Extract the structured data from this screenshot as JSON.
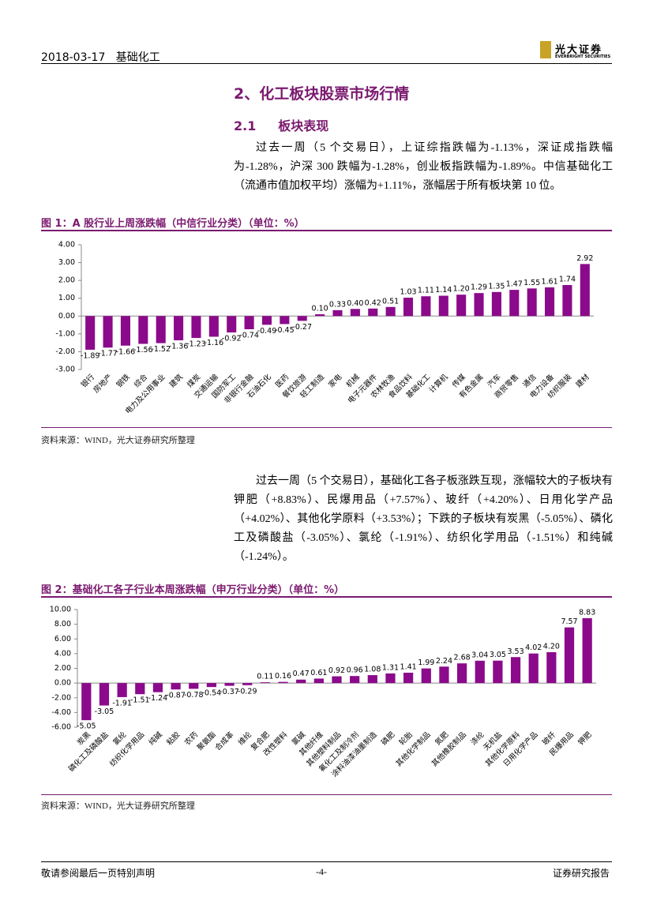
{
  "header": {
    "date": "2018-03-17",
    "sector": "基础化工",
    "logo": "光大证券",
    "logo_en": "EVERBRIGHT SECURITIES"
  },
  "section": {
    "title": "2、化工板块股票市场行情",
    "subsection_number": "2.1",
    "subsection_title": "板块表现"
  },
  "paragraphs": [
    "过去一周（5 个交易日），上证综指跌幅为-1.13%，深证成指跌幅为-1.28%，沪深 300 跌幅为-1.28%，创业板指跌幅为-1.89%。中信基础化工（流通市值加权平均）涨幅为+1.11%，涨幅居于所有板块第 10 位。",
    "过去一周（5 个交易日），基础化工各子板涨跌互现，涨幅较大的子板块有钾肥（+8.83%）、民爆用品（+7.57%）、玻纤（+4.20%）、日用化学产品（+4.02%）、其他化学原料（+3.53%）；下跌的子板块有炭黑（-5.05%）、磷化工及磷酸盐（-3.05%）、氯纶（-1.91%）、纺织化学用品（-1.51%）和纯碱（-1.24%）。"
  ],
  "chart_data": [
    {
      "type": "bar",
      "title": "图 1：A 股行业上周涨跌幅（中信行业分类）（单位：%）",
      "categories": [
        "银行",
        "房地产",
        "钢铁",
        "综合",
        "电力及公用事业",
        "建筑",
        "煤炭",
        "交通运输",
        "国防军工",
        "非银行金融",
        "石油石化",
        "医药",
        "餐饮旅游",
        "轻工制造",
        "家电",
        "机械",
        "电子元器件",
        "农林牧渔",
        "食品饮料",
        "基础化工",
        "计算机",
        "传媒",
        "有色金属",
        "汽车",
        "商贸零售",
        "通信",
        "电力设备",
        "纺织服装",
        "建材"
      ],
      "values": [
        -1.89,
        -1.77,
        -1.66,
        -1.56,
        -1.52,
        -1.36,
        -1.23,
        -1.16,
        -0.92,
        -0.74,
        -0.49,
        -0.45,
        -0.27,
        0.1,
        0.33,
        0.4,
        0.42,
        0.51,
        1.03,
        1.11,
        1.14,
        1.2,
        1.29,
        1.35,
        1.47,
        1.55,
        1.61,
        1.74,
        2.92
      ],
      "value_labels": [
        "-1.89",
        "-1.77",
        "-1.66",
        "-1.56",
        "-1.52",
        "-1.36",
        "-1.23",
        "-1.16",
        "-0.92",
        "-0.74",
        "-0.49",
        "-0.45",
        "-0.27",
        "0.10",
        "0.33",
        "0.40",
        "0.42",
        "0.51",
        "1.03",
        "1.11",
        "1.14",
        "1.20",
        "1.29",
        "1.35",
        "1.47",
        "1.55",
        "1.61",
        "1.74",
        "2.92"
      ],
      "color": "#8b0a8b",
      "ylim": [
        -3,
        4
      ],
      "yticks": [
        {
          "value": -3,
          "label": "-3.00"
        },
        {
          "value": -2,
          "label": "-2.00"
        },
        {
          "value": -1,
          "label": "-1.00"
        },
        {
          "value": 0,
          "label": "0.00"
        },
        {
          "value": 1,
          "label": "1.00"
        },
        {
          "value": 2,
          "label": "2.00"
        },
        {
          "value": 3,
          "label": "3.00"
        },
        {
          "value": 4,
          "label": "4.00"
        }
      ],
      "source": "资料来源：WIND，光大证券研究所整理"
    },
    {
      "type": "bar",
      "title": "图 2：基础化工各子行业本周涨跌幅（申万行业分类）（单位：%）",
      "categories": [
        "炭黑",
        "磷化工及磷酸盐",
        "氯纶",
        "纺织化学用品",
        "纯碱",
        "粘胶",
        "农药",
        "聚氨酯",
        "合成革",
        "维纶",
        "复合肥",
        "改性塑料",
        "氯碱",
        "其他纤维",
        "其他塑料制品",
        "氟化工及制冷剂",
        "涂料油漆油墨制造",
        "磷肥",
        "轮胎",
        "其他化学制品",
        "氮肥",
        "其他橡胶制品",
        "涤纶",
        "无机盐",
        "其他化学原料",
        "日用化学产品",
        "玻纤",
        "民爆用品",
        "钾肥"
      ],
      "values": [
        -5.05,
        -3.05,
        -1.91,
        -1.51,
        -1.24,
        -0.87,
        -0.78,
        -0.54,
        -0.37,
        -0.29,
        0.11,
        0.16,
        0.47,
        0.61,
        0.92,
        0.96,
        1.08,
        1.31,
        1.41,
        1.99,
        2.24,
        2.68,
        3.04,
        3.05,
        3.53,
        4.02,
        4.2,
        7.57,
        8.83
      ],
      "value_labels": [
        "-5.05",
        "-3.05",
        "-1.91",
        "-1.51",
        "-1.24",
        "-0.87",
        "-0.78",
        "-0.54",
        "-0.37",
        "-0.29",
        "0.11",
        "0.16",
        "0.47",
        "0.61",
        "0.92",
        "0.96",
        "1.08",
        "1.31",
        "1.41",
        "1.99",
        "2.24",
        "2.68",
        "3.04",
        "3.05",
        "3.53",
        "4.02",
        "4.20",
        "7.57",
        "8.83"
      ],
      "color": "#8b0a8b",
      "ylim": [
        -6,
        10
      ],
      "yticks": [
        {
          "value": -6,
          "label": "-6.00"
        },
        {
          "value": -4,
          "label": "-4.00"
        },
        {
          "value": -2,
          "label": "-2.00"
        },
        {
          "value": 0,
          "label": "0.00"
        },
        {
          "value": 2,
          "label": "2.00"
        },
        {
          "value": 4,
          "label": "4.00"
        },
        {
          "value": 6,
          "label": "6.00"
        },
        {
          "value": 8,
          "label": "8.00"
        },
        {
          "value": 10,
          "label": "10.00"
        }
      ],
      "source": "资料来源：WIND，光大证券研究所整理"
    }
  ],
  "footer": {
    "disclaimer": "敬请参阅最后一页特别声明",
    "page": "-4-",
    "report_type": "证券研究报告"
  }
}
